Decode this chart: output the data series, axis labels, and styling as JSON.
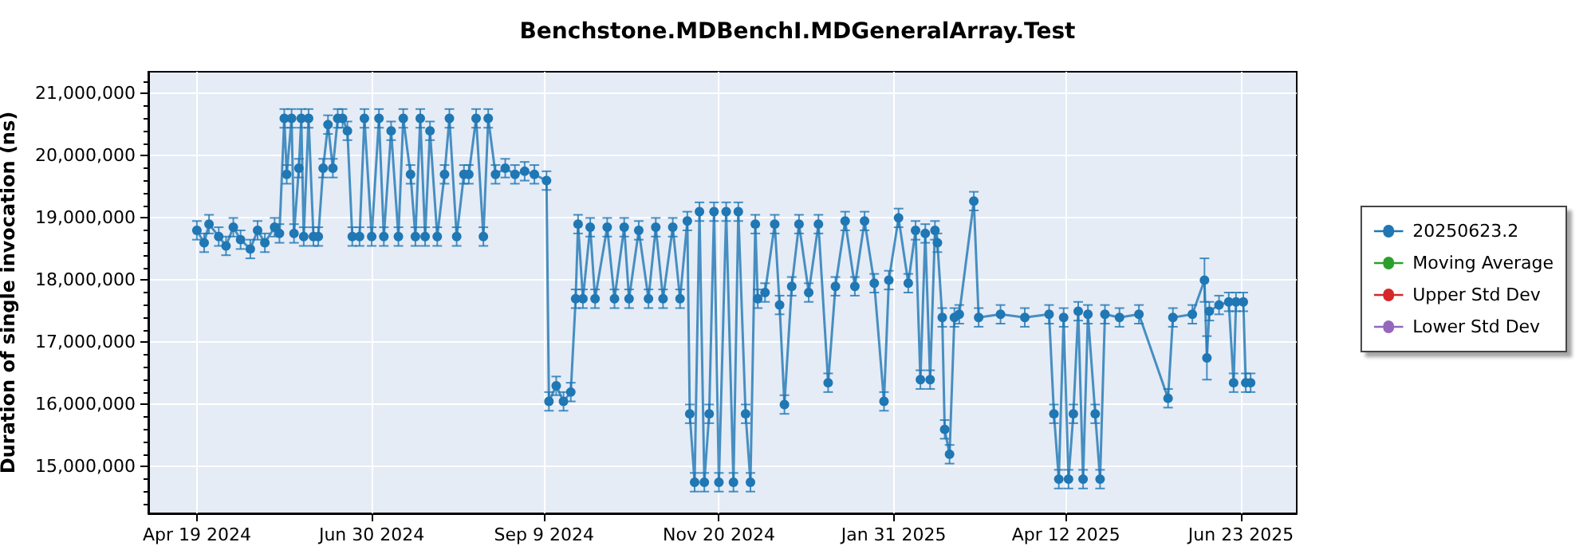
{
  "chart_data": {
    "type": "line",
    "title": "Benchstone.MDBenchI.MDGeneralArray.Test",
    "ylabel": "Duration of single invocation (ns)",
    "xlim": [
      "2024-03-30",
      "2025-07-16"
    ],
    "xticks": [
      {
        "value": "2024-04-19",
        "label": "Apr 19 2024"
      },
      {
        "value": "2024-06-30",
        "label": "Jun 30 2024"
      },
      {
        "value": "2024-09-09",
        "label": "Sep 9 2024"
      },
      {
        "value": "2024-11-20",
        "label": "Nov 20 2024"
      },
      {
        "value": "2025-01-31",
        "label": "Jan 31 2025"
      },
      {
        "value": "2025-04-12",
        "label": "Apr 12 2025"
      },
      {
        "value": "2025-06-23",
        "label": "Jun 23 2025"
      }
    ],
    "ylim": [
      14250000,
      21350000
    ],
    "yticks": [
      {
        "value": 15000000,
        "label": "15,000,000"
      },
      {
        "value": 16000000,
        "label": "16,000,000"
      },
      {
        "value": 17000000,
        "label": "17,000,000"
      },
      {
        "value": 18000000,
        "label": "18,000,000"
      },
      {
        "value": 19000000,
        "label": "19,000,000"
      },
      {
        "value": 20000000,
        "label": "20,000,000"
      },
      {
        "value": 21000000,
        "label": "21,000,000"
      }
    ],
    "grid": true,
    "legend": "right",
    "marker": "circle",
    "line_style": "solid",
    "series": [
      {
        "name": "20250623.2",
        "color": "#1f77b4",
        "x": [
          "2024-04-19",
          "2024-04-22",
          "2024-04-24",
          "2024-04-28",
          "2024-05-01",
          "2024-05-04",
          "2024-05-07",
          "2024-05-11",
          "2024-05-14",
          "2024-05-17",
          "2024-05-21",
          "2024-05-23",
          "2024-05-25",
          "2024-05-26",
          "2024-05-28",
          "2024-05-29",
          "2024-05-31",
          "2024-06-01",
          "2024-06-02",
          "2024-06-04",
          "2024-06-06",
          "2024-06-08",
          "2024-06-10",
          "2024-06-12",
          "2024-06-14",
          "2024-06-16",
          "2024-06-18",
          "2024-06-20",
          "2024-06-22",
          "2024-06-25",
          "2024-06-27",
          "2024-06-30",
          "2024-07-03",
          "2024-07-05",
          "2024-07-08",
          "2024-07-11",
          "2024-07-13",
          "2024-07-16",
          "2024-07-18",
          "2024-07-20",
          "2024-07-22",
          "2024-07-24",
          "2024-07-27",
          "2024-07-30",
          "2024-08-01",
          "2024-08-04",
          "2024-08-07",
          "2024-08-09",
          "2024-08-12",
          "2024-08-15",
          "2024-08-17",
          "2024-08-20",
          "2024-08-24",
          "2024-08-28",
          "2024-09-01",
          "2024-09-05",
          "2024-09-10",
          "2024-09-11",
          "2024-09-14",
          "2024-09-17",
          "2024-09-20",
          "2024-09-22",
          "2024-09-23",
          "2024-09-25",
          "2024-09-28",
          "2024-09-30",
          "2024-10-05",
          "2024-10-08",
          "2024-10-12",
          "2024-10-14",
          "2024-10-18",
          "2024-10-22",
          "2024-10-25",
          "2024-10-28",
          "2024-11-01",
          "2024-11-04",
          "2024-11-07",
          "2024-11-08",
          "2024-11-10",
          "2024-11-12",
          "2024-11-14",
          "2024-11-16",
          "2024-11-18",
          "2024-11-20",
          "2024-11-23",
          "2024-11-26",
          "2024-11-28",
          "2024-12-01",
          "2024-12-03",
          "2024-12-05",
          "2024-12-06",
          "2024-12-09",
          "2024-12-13",
          "2024-12-15",
          "2024-12-17",
          "2024-12-20",
          "2024-12-23",
          "2024-12-27",
          "2024-12-31",
          "2025-01-04",
          "2025-01-07",
          "2025-01-11",
          "2025-01-15",
          "2025-01-19",
          "2025-01-23",
          "2025-01-27",
          "2025-01-29",
          "2025-02-02",
          "2025-02-06",
          "2025-02-09",
          "2025-02-11",
          "2025-02-13",
          "2025-02-15",
          "2025-02-17",
          "2025-02-18",
          "2025-02-20",
          "2025-02-21",
          "2025-02-23",
          "2025-02-25",
          "2025-02-27",
          "2025-03-05",
          "2025-03-07",
          "2025-03-16",
          "2025-03-26",
          "2025-04-05",
          "2025-04-07",
          "2025-04-09",
          "2025-04-11",
          "2025-04-13",
          "2025-04-15",
          "2025-04-17",
          "2025-04-19",
          "2025-04-21",
          "2025-04-24",
          "2025-04-26",
          "2025-04-28",
          "2025-05-04",
          "2025-05-12",
          "2025-05-24",
          "2025-05-26",
          "2025-06-03",
          "2025-06-08",
          "2025-06-09",
          "2025-06-10",
          "2025-06-14",
          "2025-06-18",
          "2025-06-20",
          "2025-06-21",
          "2025-06-24",
          "2025-06-25",
          "2025-06-27"
        ],
        "values": [
          18800000,
          18600000,
          18900000,
          18700000,
          18550000,
          18850000,
          18650000,
          18500000,
          18800000,
          18600000,
          18850000,
          18750000,
          20600000,
          19700000,
          20600000,
          18750000,
          19800000,
          20600000,
          18700000,
          20600000,
          18700000,
          18700000,
          19800000,
          20500000,
          19800000,
          20600000,
          20600000,
          20400000,
          18700000,
          18700000,
          20600000,
          18700000,
          20600000,
          18700000,
          20400000,
          18700000,
          20600000,
          19700000,
          18700000,
          20600000,
          18700000,
          20400000,
          18700000,
          19700000,
          20600000,
          18700000,
          19700000,
          19700000,
          20600000,
          18700000,
          20600000,
          19700000,
          19800000,
          19700000,
          19750000,
          19700000,
          19600000,
          16050000,
          16300000,
          16050000,
          16200000,
          17700000,
          18900000,
          17700000,
          18850000,
          17700000,
          18850000,
          17700000,
          18850000,
          17700000,
          18800000,
          17700000,
          18850000,
          17700000,
          18850000,
          17700000,
          18950000,
          15850000,
          14750000,
          19100000,
          14750000,
          15850000,
          19100000,
          14750000,
          19100000,
          14750000,
          19100000,
          15850000,
          14750000,
          18900000,
          17700000,
          17800000,
          18900000,
          17600000,
          16000000,
          17900000,
          18900000,
          17800000,
          18900000,
          16350000,
          17900000,
          18950000,
          17900000,
          18950000,
          17950000,
          16050000,
          18000000,
          19000000,
          17950000,
          18800000,
          16400000,
          18750000,
          16400000,
          18800000,
          18600000,
          17400000,
          15600000,
          15200000,
          17400000,
          17450000,
          19270000,
          17400000,
          17450000,
          17400000,
          17450000,
          15850000,
          14800000,
          17400000,
          14800000,
          15850000,
          17500000,
          14800000,
          17450000,
          15850000,
          14800000,
          17450000,
          17400000,
          17450000,
          16100000,
          17400000,
          17450000,
          18000000,
          16750000,
          17500000,
          17600000,
          17650000,
          16350000,
          17650000,
          17650000,
          16350000,
          16350000
        ],
        "errors": [
          150000,
          150000,
          150000,
          150000,
          150000,
          150000,
          150000,
          150000,
          150000,
          150000,
          150000,
          150000,
          150000,
          150000,
          150000,
          150000,
          150000,
          150000,
          150000,
          150000,
          150000,
          150000,
          150000,
          150000,
          150000,
          150000,
          150000,
          150000,
          150000,
          150000,
          150000,
          150000,
          150000,
          150000,
          150000,
          150000,
          150000,
          150000,
          150000,
          150000,
          150000,
          150000,
          150000,
          150000,
          150000,
          150000,
          150000,
          150000,
          150000,
          150000,
          150000,
          150000,
          150000,
          150000,
          150000,
          150000,
          150000,
          150000,
          150000,
          150000,
          150000,
          150000,
          150000,
          150000,
          150000,
          150000,
          150000,
          150000,
          150000,
          150000,
          150000,
          150000,
          150000,
          150000,
          150000,
          150000,
          150000,
          150000,
          150000,
          150000,
          150000,
          150000,
          150000,
          150000,
          150000,
          150000,
          150000,
          150000,
          150000,
          150000,
          150000,
          150000,
          150000,
          150000,
          150000,
          150000,
          150000,
          150000,
          150000,
          150000,
          150000,
          150000,
          150000,
          150000,
          150000,
          150000,
          150000,
          150000,
          150000,
          150000,
          150000,
          150000,
          150000,
          150000,
          150000,
          150000,
          150000,
          150000,
          150000,
          150000,
          150000,
          150000,
          150000,
          150000,
          150000,
          150000,
          150000,
          150000,
          150000,
          150000,
          150000,
          150000,
          150000,
          150000,
          150000,
          150000,
          150000,
          150000,
          150000,
          150000,
          150000,
          350000,
          350000,
          150000,
          150000,
          150000,
          150000,
          150000,
          150000,
          150000,
          150000
        ]
      },
      {
        "name": "Moving Average",
        "color": "#2ca02c"
      },
      {
        "name": "Upper Std Dev",
        "color": "#d62728"
      },
      {
        "name": "Lower Std Dev",
        "color": "#9467bd"
      }
    ]
  }
}
